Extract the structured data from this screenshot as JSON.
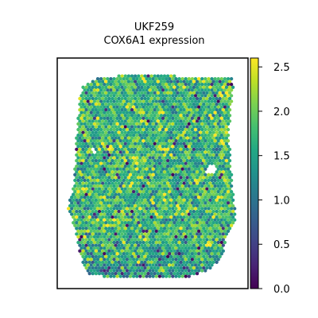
{
  "chart_data": {
    "type": "heatmap",
    "title_lines": [
      "UKF259",
      "COX6A1 expression"
    ],
    "colorbar": {
      "colormap": "viridis",
      "range": [
        0.0,
        2.6
      ],
      "ticks": [
        0.0,
        0.5,
        1.0,
        1.5,
        2.0,
        2.5
      ],
      "tick_labels": [
        "0.0",
        "0.5",
        "1.0",
        "1.5",
        "2.0",
        "2.5"
      ]
    },
    "axes": {
      "x_ticks": "none",
      "y_ticks": "none",
      "grid": false
    },
    "spots": {
      "description": "hexagonal spatial transcriptomics spots; per-spot expression values mostly between 1.0 and 2.3, with low values concentrated at the lower edge",
      "value_range": [
        0.0,
        2.6
      ],
      "typical_value": 1.7
    }
  }
}
